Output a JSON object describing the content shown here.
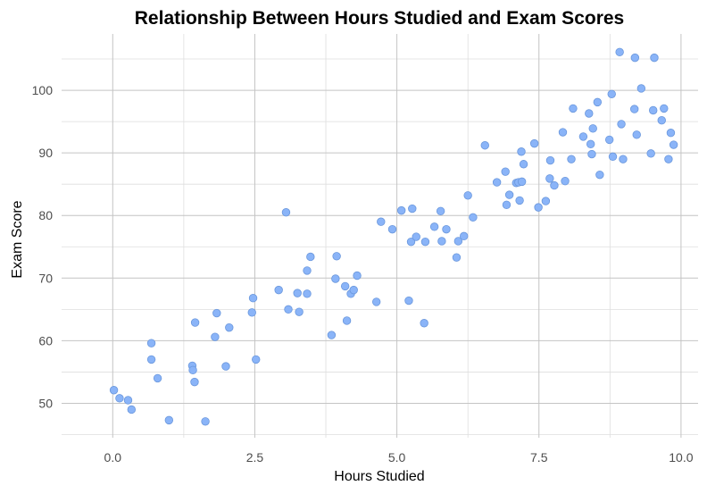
{
  "chart_data": {
    "type": "scatter",
    "title": "Relationship Between Hours Studied and Exam Scores",
    "xlabel": "Hours Studied",
    "ylabel": "Exam Score",
    "xlim": [
      -0.9,
      10.3
    ],
    "ylim": [
      44.5,
      109
    ],
    "xticks": [
      0.0,
      2.5,
      5.0,
      7.5,
      10.0
    ],
    "xtick_labels": [
      "0.0",
      "2.5",
      "5.0",
      "7.5",
      "10.0"
    ],
    "yticks": [
      50,
      60,
      70,
      80,
      90,
      100
    ],
    "ytick_labels": [
      "50",
      "60",
      "70",
      "80",
      "90",
      "100"
    ],
    "grid": true,
    "legend": "none",
    "point_color": "#8ab4f8",
    "series": [
      {
        "x": [
          0.02,
          0.12,
          0.27,
          0.33,
          0.68,
          0.68,
          0.79,
          0.99,
          1.4,
          1.41,
          1.44,
          1.45,
          1.63,
          1.8,
          1.83,
          1.99,
          2.05,
          2.45,
          2.47,
          2.52,
          2.92,
          3.05,
          3.09,
          3.25,
          3.28,
          3.42,
          3.42,
          3.48,
          3.85,
          3.92,
          3.94,
          4.09,
          4.12,
          4.19,
          4.24,
          4.3,
          4.64,
          4.72,
          4.92,
          5.08,
          5.21,
          5.25,
          5.27,
          5.34,
          5.48,
          5.5,
          5.66,
          5.77,
          5.79,
          5.87,
          6.05,
          6.08,
          6.18,
          6.25,
          6.34,
          6.55,
          6.76,
          6.91,
          6.93,
          6.98,
          7.1,
          7.14,
          7.16,
          7.19,
          7.2,
          7.23,
          7.42,
          7.49,
          7.62,
          7.69,
          7.7,
          7.77,
          7.92,
          7.96,
          8.07,
          8.1,
          8.28,
          8.38,
          8.41,
          8.43,
          8.45,
          8.53,
          8.57,
          8.74,
          8.78,
          8.8,
          8.92,
          8.95,
          8.98,
          9.18,
          9.19,
          9.22,
          9.3,
          9.47,
          9.51,
          9.53,
          9.66,
          9.7,
          9.78,
          9.82,
          9.87
        ],
        "y": [
          52.1,
          50.8,
          50.5,
          49.0,
          59.6,
          57.0,
          54.0,
          47.3,
          56.0,
          55.3,
          53.4,
          62.9,
          47.1,
          60.6,
          64.4,
          55.9,
          62.1,
          64.5,
          66.8,
          57.0,
          68.1,
          80.5,
          65.0,
          67.6,
          64.6,
          71.2,
          67.5,
          73.4,
          60.9,
          69.9,
          73.5,
          68.7,
          63.2,
          67.5,
          68.1,
          70.4,
          66.2,
          79.0,
          77.8,
          80.8,
          66.4,
          75.8,
          81.1,
          76.6,
          62.8,
          75.8,
          78.2,
          80.7,
          75.9,
          77.8,
          73.3,
          75.9,
          76.7,
          83.2,
          79.7,
          91.2,
          85.3,
          87.0,
          81.7,
          83.3,
          85.2,
          85.3,
          82.4,
          90.2,
          85.4,
          88.2,
          91.5,
          81.3,
          82.3,
          85.9,
          88.8,
          84.8,
          93.3,
          85.5,
          89.0,
          97.1,
          92.6,
          96.3,
          91.4,
          89.8,
          93.9,
          98.1,
          86.5,
          92.1,
          99.4,
          89.4,
          106.1,
          94.6,
          89.0,
          97.0,
          105.2,
          92.9,
          100.3,
          89.9,
          96.8,
          105.2,
          95.2,
          97.1,
          89.0,
          93.2,
          91.3
        ]
      }
    ]
  }
}
